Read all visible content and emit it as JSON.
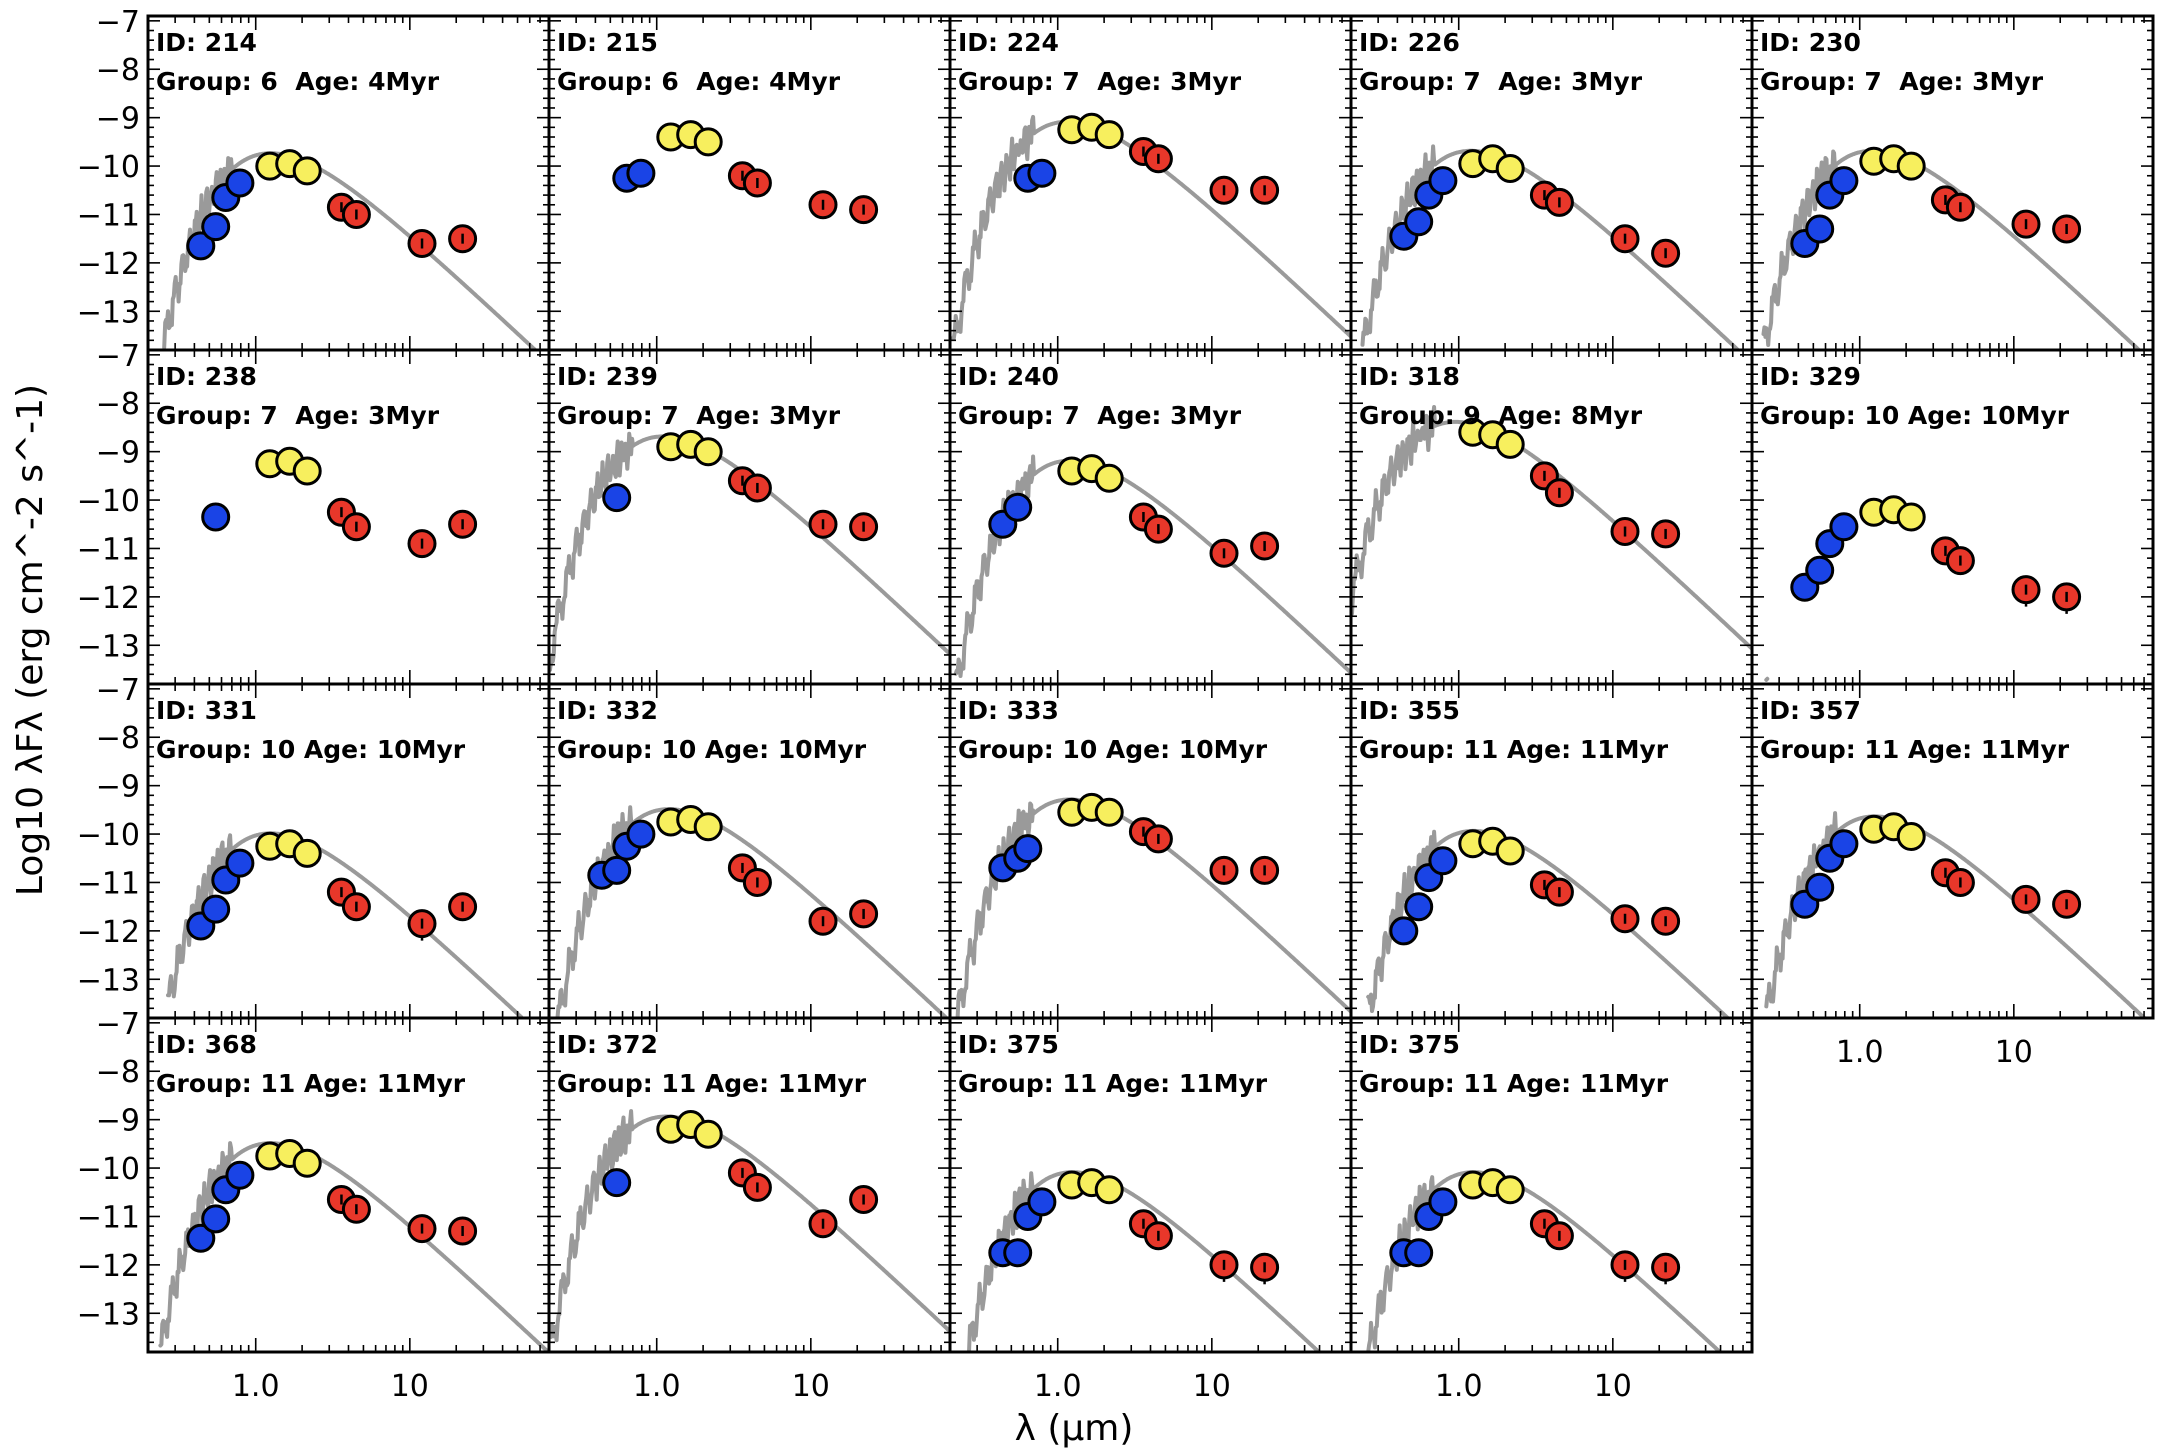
{
  "chart_data": {
    "type": "scatter",
    "title": "",
    "xlabel": "λ (μm)",
    "ylabel": "Log10 λFλ (erg cm^-2 s^-1)",
    "xscale": "log",
    "xlim": [
      0.2,
      80
    ],
    "ylim": [
      -13.8,
      -6.9
    ],
    "xticks": [
      {
        "value": 1.0,
        "label": "1.0"
      },
      {
        "value": 10,
        "label": "10"
      }
    ],
    "yticks": [
      -7,
      -8,
      -9,
      -10,
      -11,
      -12,
      -13
    ],
    "series_colors": {
      "blue": "#1a44e6",
      "yellow": "#f7ef5e",
      "red": "#e8372a",
      "model": "#9a9a9a"
    },
    "bands_um": {
      "blue": [
        0.44,
        0.55,
        0.64,
        0.79
      ],
      "yellow": [
        1.235,
        1.662,
        2.159
      ],
      "red": [
        3.6,
        4.5,
        12,
        22
      ]
    },
    "panels": [
      {
        "id_label": "ID: 214",
        "group_label": "Group: 6  Age: 4Myr",
        "peak_um": 1.25,
        "peak": -9.95,
        "blue": [
          -11.65,
          -11.25,
          -10.65,
          -10.35
        ],
        "yellow": [
          -10.0,
          -9.95,
          -10.1
        ],
        "red": [
          -10.85,
          -11.0,
          -11.6,
          -11.5
        ]
      },
      {
        "id_label": "ID: 215",
        "group_label": "Group: 6  Age: 4Myr",
        "peak_um": 1.05,
        "peak": -9.4,
        "blue": [
          null,
          null,
          -10.25,
          -10.15
        ],
        "yellow": [
          -9.4,
          -9.35,
          -9.5
        ],
        "red": [
          -10.2,
          -10.35,
          -10.8,
          -10.9
        ]
      },
      {
        "id_label": "ID: 224",
        "group_label": "Group: 7  Age: 3Myr",
        "peak_um": 1.15,
        "peak": -9.3,
        "blue": [
          null,
          null,
          -10.25,
          -10.15
        ],
        "yellow": [
          -9.25,
          -9.2,
          -9.35
        ],
        "red": [
          -9.7,
          -9.85,
          -10.5,
          -10.5
        ]
      },
      {
        "id_label": "ID: 226",
        "group_label": "Group: 7  Age: 3Myr",
        "peak_um": 1.2,
        "peak": -9.9,
        "blue": [
          -11.45,
          -11.15,
          -10.6,
          -10.3
        ],
        "yellow": [
          -9.95,
          -9.85,
          -10.05
        ],
        "red": [
          -10.6,
          -10.75,
          -11.5,
          -11.8
        ]
      },
      {
        "id_label": "ID: 230",
        "group_label": "Group: 7  Age: 3Myr",
        "peak_um": 1.2,
        "peak": -9.9,
        "blue": [
          -11.6,
          -11.3,
          -10.6,
          -10.3
        ],
        "yellow": [
          -9.9,
          -9.85,
          -10.0
        ],
        "red": [
          -10.7,
          -10.85,
          -11.2,
          -11.3
        ]
      },
      {
        "id_label": "ID: 238",
        "group_label": "Group: 7  Age: 3Myr",
        "peak_um": 1.15,
        "peak": -9.25,
        "blue": [
          null,
          -10.35,
          null,
          null
        ],
        "yellow": [
          -9.25,
          -9.2,
          -9.4
        ],
        "red": [
          -10.25,
          -10.55,
          -10.9,
          -10.5
        ]
      },
      {
        "id_label": "ID: 239",
        "group_label": "Group: 7  Age: 3Myr",
        "peak_um": 1.1,
        "peak": -8.9,
        "blue": [
          null,
          -9.95,
          null,
          null
        ],
        "yellow": [
          -8.9,
          -8.85,
          -9.0
        ],
        "red": [
          -9.6,
          -9.75,
          -10.5,
          -10.55
        ]
      },
      {
        "id_label": "ID: 240",
        "group_label": "Group: 7  Age: 3Myr",
        "peak_um": 1.2,
        "peak": -9.4,
        "blue": [
          -10.5,
          -10.15,
          null,
          null
        ],
        "yellow": [
          -9.4,
          -9.35,
          -9.55
        ],
        "red": [
          -10.35,
          -10.6,
          -11.1,
          -10.95
        ]
      },
      {
        "id_label": "ID: 318",
        "group_label": "Group: 9  Age: 8Myr",
        "peak_um": 0.95,
        "peak": -8.6,
        "blue": [
          null,
          null,
          null,
          null
        ],
        "yellow": [
          -8.6,
          -8.65,
          -8.85
        ],
        "red": [
          -9.5,
          -9.85,
          -10.65,
          -10.7
        ]
      },
      {
        "id_label": "ID: 329",
        "group_label": "Group: 10 Age: 10Myr",
        "peak_um": 1.25,
        "peak": -10.2,
        "blue": [
          -11.8,
          -11.45,
          -10.9,
          -10.55
        ],
        "yellow": [
          -10.25,
          -10.2,
          -10.35
        ],
        "red": [
          -11.05,
          -11.25,
          -11.85,
          -12.0
        ]
      },
      {
        "id_label": "ID: 331",
        "group_label": "Group: 10 Age: 10Myr",
        "peak_um": 1.25,
        "peak": -10.2,
        "blue": [
          -11.9,
          -11.55,
          -10.95,
          -10.6
        ],
        "yellow": [
          -10.25,
          -10.2,
          -10.4
        ],
        "red": [
          -11.2,
          -11.5,
          -11.85,
          -11.5
        ]
      },
      {
        "id_label": "ID: 332",
        "group_label": "Group: 10 Age: 10Myr",
        "peak_um": 1.2,
        "peak": -9.7,
        "blue": [
          -10.85,
          -10.75,
          -10.25,
          -10.0
        ],
        "yellow": [
          -9.75,
          -9.7,
          -9.85
        ],
        "red": [
          -10.7,
          -11.0,
          -11.8,
          -11.65
        ]
      },
      {
        "id_label": "ID: 333",
        "group_label": "Group: 10 Age: 10Myr",
        "peak_um": 1.2,
        "peak": -9.5,
        "blue": [
          -10.7,
          -10.5,
          -10.3,
          null
        ],
        "yellow": [
          -9.55,
          -9.45,
          -9.55
        ],
        "red": [
          -9.95,
          -10.1,
          -10.75,
          -10.75
        ]
      },
      {
        "id_label": "ID: 355",
        "group_label": "Group: 11 Age: 11Myr",
        "peak_um": 1.25,
        "peak": -10.15,
        "blue": [
          -12.0,
          -11.5,
          -10.9,
          -10.55
        ],
        "yellow": [
          -10.2,
          -10.15,
          -10.35
        ],
        "red": [
          -11.05,
          -11.2,
          -11.75,
          -11.8
        ]
      },
      {
        "id_label": "ID: 357",
        "group_label": "Group: 11 Age: 11Myr",
        "peak_um": 1.25,
        "peak": -9.85,
        "blue": [
          -11.45,
          -11.1,
          -10.5,
          -10.2
        ],
        "yellow": [
          -9.9,
          -9.85,
          -10.05
        ],
        "red": [
          -10.8,
          -11.0,
          -11.35,
          -11.45
        ]
      },
      {
        "id_label": "ID: 368",
        "group_label": "Group: 11 Age: 11Myr",
        "peak_um": 1.25,
        "peak": -9.7,
        "blue": [
          -11.45,
          -11.05,
          -10.45,
          -10.15
        ],
        "yellow": [
          -9.75,
          -9.7,
          -9.9
        ],
        "red": [
          -10.65,
          -10.85,
          -11.25,
          -11.3
        ]
      },
      {
        "id_label": "ID: 372",
        "group_label": "Group: 11 Age: 11Myr",
        "peak_um": 1.15,
        "peak": -9.15,
        "blue": [
          null,
          -10.3,
          null,
          null
        ],
        "yellow": [
          -9.2,
          -9.1,
          -9.3
        ],
        "red": [
          -10.1,
          -10.4,
          -11.15,
          -10.65
        ]
      },
      {
        "id_label": "ID: 375",
        "group_label": "Group: 11 Age: 11Myr",
        "peak_um": 1.25,
        "peak": -10.3,
        "blue": [
          -11.75,
          -11.75,
          -11.0,
          -10.7
        ],
        "yellow": [
          -10.35,
          -10.3,
          -10.45
        ],
        "red": [
          -11.15,
          -11.4,
          -12.0,
          -12.05
        ]
      },
      {
        "id_label": "ID: 375",
        "group_label": "Group: 11 Age: 11Myr",
        "peak_um": 1.25,
        "peak": -10.3,
        "blue": [
          -11.75,
          -11.75,
          -11.0,
          -10.7
        ],
        "yellow": [
          -10.35,
          -10.3,
          -10.45
        ],
        "red": [
          -11.15,
          -11.4,
          -12.0,
          -12.05
        ]
      }
    ]
  }
}
